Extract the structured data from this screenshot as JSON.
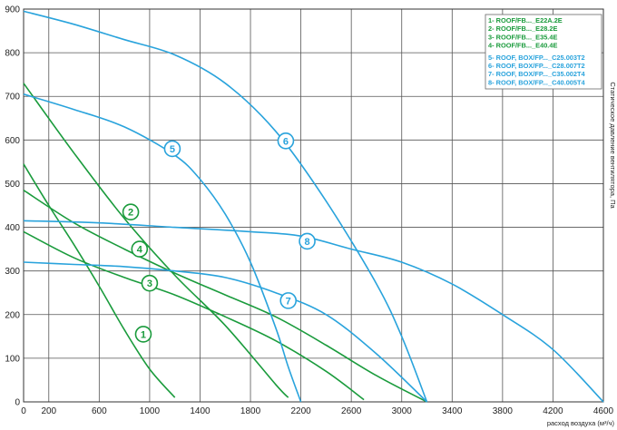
{
  "chart_data": {
    "type": "line",
    "xlabel": "расход воздуха (м³/ч)",
    "ylabel": "Статическое давление вентилятора, Па",
    "xlim": [
      0,
      4600
    ],
    "ylim": [
      0,
      900
    ],
    "x_ticks": [
      0,
      200,
      600,
      1000,
      1400,
      1800,
      2200,
      2600,
      3000,
      3400,
      3800,
      4200,
      4600
    ],
    "x_tick_labels": [
      "0",
      "200",
      "600",
      "1000",
      "1400",
      "1800",
      "2200",
      "2600",
      "3000",
      "3400",
      "3800",
      "4200",
      "4600"
    ],
    "y_ticks": [
      0,
      100,
      200,
      300,
      400,
      500,
      600,
      700,
      800,
      900
    ],
    "y_tick_labels": [
      "0",
      "100",
      "200",
      "300",
      "400",
      "500",
      "600",
      "700",
      "800",
      "900"
    ],
    "grid": true,
    "legend_position": "top-right",
    "legend": [
      {
        "text": "1- ROOF/FB..._E22A.2E",
        "color": "#1a9b3c"
      },
      {
        "text": "2- ROOF/FB..._E28.2E",
        "color": "#1a9b3c"
      },
      {
        "text": "3- ROOF/FB..._E35.4E",
        "color": "#1a9b3c"
      },
      {
        "text": "4- ROOF/FB..._E40.4E",
        "color": "#1a9b3c"
      },
      {
        "text": "5- ROOF, BOX/FP..._C25.003T2",
        "color": "#29a3dc"
      },
      {
        "text": "6- ROOF, BOX/FP..._C28.007T2",
        "color": "#29a3dc"
      },
      {
        "text": "7- ROOF, BOX/FP..._C35.002T4",
        "color": "#29a3dc"
      },
      {
        "text": "8- ROOF, BOX/FP..._C40.005T4",
        "color": "#29a3dc"
      }
    ],
    "series": [
      {
        "label": "1",
        "color": "#1a9b3c",
        "x": [
          0,
          200,
          400,
          600,
          800,
          1000,
          1200
        ],
        "y": [
          545,
          450,
          360,
          265,
          165,
          75,
          10
        ],
        "marker": {
          "x": 950,
          "y": 155
        }
      },
      {
        "label": "2",
        "color": "#1a9b3c",
        "x": [
          0,
          400,
          800,
          1200,
          1600,
          2000,
          2100
        ],
        "y": [
          730,
          570,
          420,
          290,
          175,
          40,
          10
        ],
        "marker": {
          "x": 850,
          "y": 435
        }
      },
      {
        "label": "3",
        "color": "#1a9b3c",
        "x": [
          0,
          400,
          800,
          1200,
          1600,
          2000,
          2400,
          2700
        ],
        "y": [
          390,
          330,
          285,
          245,
          195,
          140,
          70,
          5
        ],
        "marker": {
          "x": 1000,
          "y": 272
        }
      },
      {
        "label": "4",
        "color": "#1a9b3c",
        "x": [
          0,
          400,
          800,
          1200,
          1600,
          2000,
          2400,
          2800,
          3200
        ],
        "y": [
          485,
          410,
          350,
          295,
          245,
          195,
          130,
          60,
          0
        ],
        "marker": {
          "x": 920,
          "y": 350
        }
      },
      {
        "label": "5",
        "color": "#29a3dc",
        "x": [
          0,
          400,
          800,
          1200,
          1400,
          1600,
          1800,
          2000,
          2100,
          2200
        ],
        "y": [
          705,
          670,
          630,
          565,
          510,
          430,
          320,
          170,
          80,
          0
        ],
        "marker": {
          "x": 1180,
          "y": 580
        }
      },
      {
        "label": "6",
        "color": "#29a3dc",
        "x": [
          0,
          400,
          800,
          1200,
          1600,
          2000,
          2400,
          2800,
          3000,
          3200
        ],
        "y": [
          895,
          865,
          830,
          795,
          730,
          620,
          460,
          270,
          150,
          0
        ],
        "marker": {
          "x": 2080,
          "y": 598
        }
      },
      {
        "label": "7",
        "color": "#29a3dc",
        "x": [
          0,
          400,
          800,
          1200,
          1600,
          2000,
          2400,
          2800,
          3200
        ],
        "y": [
          320,
          315,
          310,
          300,
          285,
          250,
          200,
          110,
          0
        ],
        "marker": {
          "x": 2100,
          "y": 232
        }
      },
      {
        "label": "8",
        "color": "#29a3dc",
        "x": [
          0,
          600,
          1200,
          1800,
          2200,
          2600,
          3000,
          3400,
          3800,
          4200,
          4600
        ],
        "y": [
          415,
          410,
          400,
          390,
          380,
          350,
          320,
          270,
          200,
          120,
          0
        ],
        "marker": {
          "x": 2250,
          "y": 368
        }
      }
    ]
  }
}
